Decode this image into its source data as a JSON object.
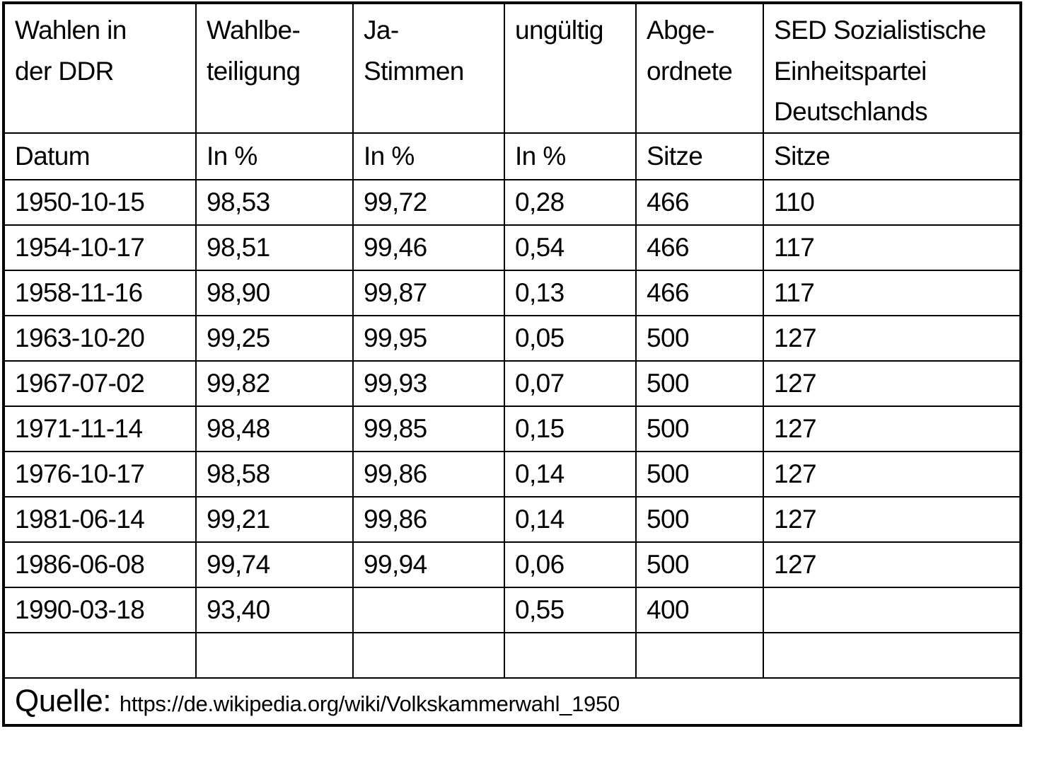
{
  "page": {
    "background_color": "#ffffff",
    "text_color": "#000000",
    "grid_color": "#000000"
  },
  "table": {
    "header_row1": [
      "Wahlen in\nder DDR",
      "Wahlbe-\nteiligung",
      "Ja-\nStimmen",
      "ungültig",
      "Abge-\nordnete",
      "SED Sozialistische\nEinheitspartei\nDeutschlands"
    ],
    "header_row2": [
      "Datum",
      "In %",
      "In %",
      "In %",
      "Sitze",
      "Sitze"
    ],
    "rows": [
      [
        "1950-10-15",
        "98,53",
        "99,72",
        "0,28",
        "466",
        "110"
      ],
      [
        "1954-10-17",
        "98,51",
        "99,46",
        "0,54",
        "466",
        "117"
      ],
      [
        "1958-11-16",
        "98,90",
        "99,87",
        "0,13",
        "466",
        "117"
      ],
      [
        "1963-10-20",
        "99,25",
        "99,95",
        "0,05",
        "500",
        "127"
      ],
      [
        "1967-07-02",
        "99,82",
        "99,93",
        "0,07",
        "500",
        "127"
      ],
      [
        "1971-11-14",
        "98,48",
        "99,85",
        "0,15",
        "500",
        "127"
      ],
      [
        "1976-10-17",
        "98,58",
        "99,86",
        "0,14",
        "500",
        "127"
      ],
      [
        "1981-06-14",
        "99,21",
        "99,86",
        "0,14",
        "500",
        "127"
      ],
      [
        "1986-06-08",
        "99,74",
        "99,94",
        "0,06",
        "500",
        "127"
      ],
      [
        "1990-03-18",
        "93,40",
        "",
        "0,55",
        "400",
        ""
      ],
      [
        "",
        "",
        "",
        "",
        "",
        ""
      ]
    ],
    "footer": {
      "label": "Quelle:",
      "url": "https://de.wikipedia.org/wiki/Volkskammerwahl_1950"
    }
  }
}
